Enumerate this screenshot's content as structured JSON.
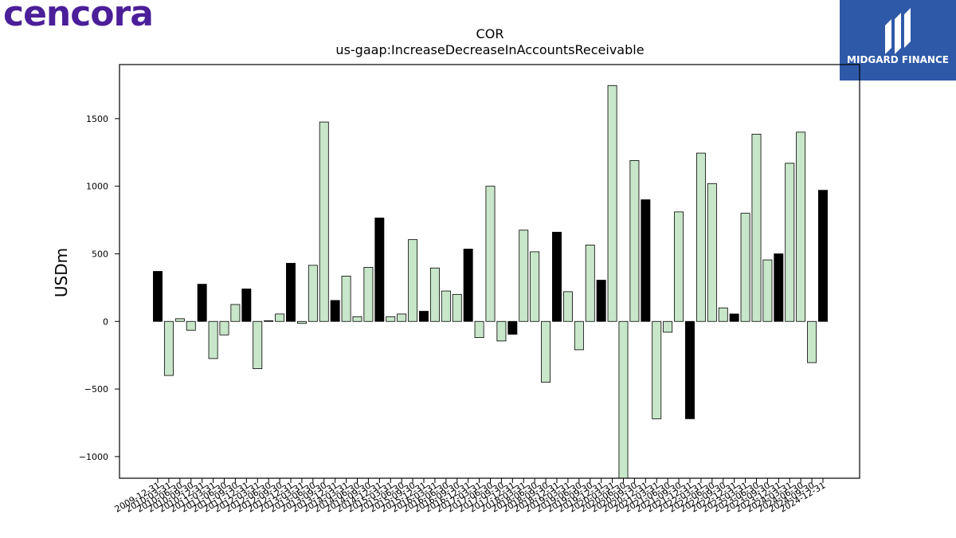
{
  "brand": {
    "logo_text": "cencora",
    "logo_color": "#4b1f99"
  },
  "badge": {
    "text": "MIDGARD FINANCE",
    "bg_color": "#2e59a8"
  },
  "colors": {
    "highlight_fill": "#000000",
    "normal_fill": "#c8e6c9",
    "bar_stroke": "#000000"
  },
  "chart_data": {
    "type": "bar",
    "title": "COR",
    "subtitle": "us-gaap:IncreaseDecreaseInAccountsReceivable",
    "ylabel": "USDm",
    "xlabel": "",
    "ylim": [
      -1160,
      1900
    ],
    "yticks": [
      -1000,
      -500,
      0,
      500,
      1000,
      1500
    ],
    "ytick_labels": [
      "−1000",
      "−500",
      "0",
      "500",
      "1000",
      "1500"
    ],
    "grid": false,
    "categories": [
      "2009-12-31",
      "2010-03-31",
      "2010-06-30",
      "2010-09-30",
      "2010-12-31",
      "2011-03-31",
      "2011-06-30",
      "2011-09-30",
      "2011-12-31",
      "2012-03-31",
      "2012-06-30",
      "2012-09-30",
      "2012-12-31",
      "2013-03-31",
      "2013-06-30",
      "2013-09-30",
      "2013-12-31",
      "2014-03-31",
      "2014-06-30",
      "2014-09-30",
      "2014-12-31",
      "2015-03-31",
      "2015-06-30",
      "2015-09-30",
      "2015-12-31",
      "2016-03-31",
      "2016-06-30",
      "2016-09-30",
      "2016-12-31",
      "2017-03-31",
      "2017-06-30",
      "2017-09-30",
      "2017-12-31",
      "2018-03-31",
      "2018-06-30",
      "2018-09-30",
      "2018-12-31",
      "2019-03-31",
      "2019-06-30",
      "2019-09-30",
      "2019-12-31",
      "2020-03-31",
      "2020-06-30",
      "2020-09-30",
      "2020-12-31",
      "2021-03-31",
      "2021-06-30",
      "2021-09-30",
      "2021-12-31",
      "2022-03-31",
      "2022-06-30",
      "2022-09-30",
      "2022-12-31",
      "2023-03-31",
      "2023-06-30",
      "2023-09-30",
      "2023-12-31",
      "2024-03-31",
      "2024-06-30",
      "2024-09-30",
      "2024-12-31"
    ],
    "values": [
      370,
      -400,
      20,
      -65,
      275,
      -275,
      -100,
      125,
      240,
      -350,
      5,
      55,
      430,
      -15,
      415,
      1475,
      155,
      335,
      35,
      400,
      765,
      35,
      55,
      605,
      75,
      395,
      225,
      200,
      535,
      -120,
      1000,
      -145,
      -95,
      675,
      515,
      -450,
      660,
      220,
      -210,
      565,
      305,
      1745,
      -1160,
      1190,
      900,
      -720,
      -80,
      810,
      -720,
      1245,
      1020,
      100,
      55,
      800,
      1385,
      455,
      500,
      1170,
      1400,
      -305,
      970
    ],
    "highlighted": [
      true,
      false,
      false,
      false,
      true,
      false,
      false,
      false,
      true,
      false,
      false,
      false,
      true,
      false,
      false,
      false,
      true,
      false,
      false,
      false,
      true,
      false,
      false,
      false,
      true,
      false,
      false,
      false,
      true,
      false,
      false,
      false,
      true,
      false,
      false,
      false,
      true,
      false,
      false,
      false,
      true,
      false,
      false,
      false,
      true,
      false,
      false,
      false,
      true,
      false,
      false,
      false,
      true,
      false,
      false,
      false,
      true,
      false,
      false,
      false,
      true
    ]
  }
}
